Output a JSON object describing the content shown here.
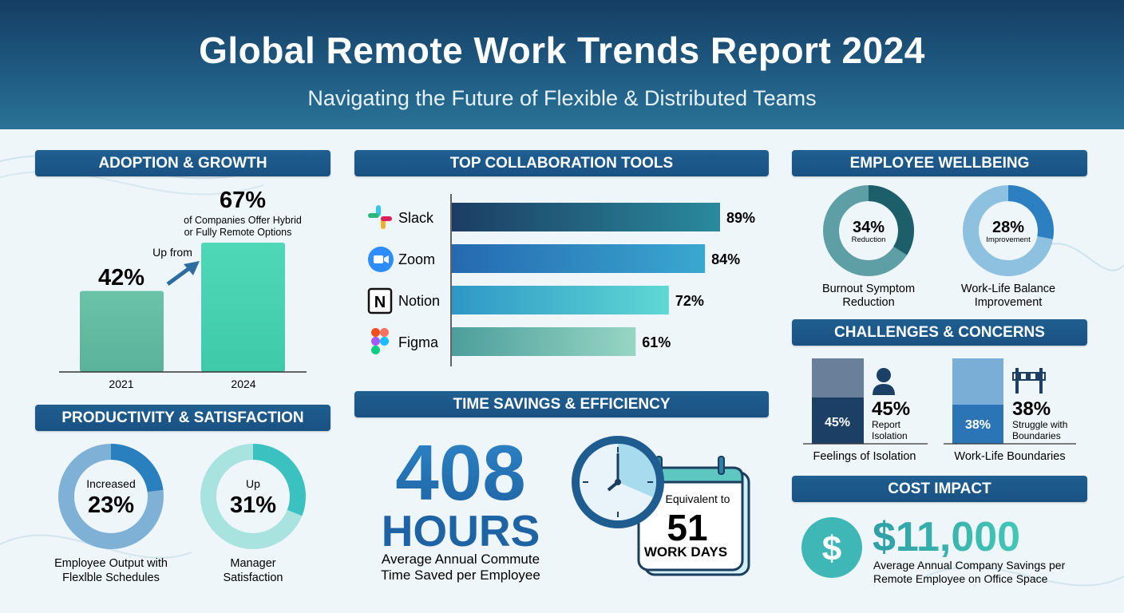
{
  "header": {
    "title": "Global Remote Work Trends Report 2024",
    "subtitle": "Navigating the Future of Flexible & Distributed Teams"
  },
  "sections": {
    "adoption": "ADOPTION & GROWTH",
    "tools": "TOP COLLABORATION TOOLS",
    "wellbeing": "EMPLOYEE WELLBEING",
    "productivity": "PRODUCTIVITY & SATISFACTION",
    "time": "TIME SAVINGS & EFFICIENCY",
    "challenges": "CHALLENGES & CONCERNS",
    "cost": "COST IMPACT"
  },
  "adoption": {
    "big_value": "67%",
    "caption_line1": "of Companies Offer Hybrid",
    "caption_line2": "or Fully Remote Options",
    "up_from": "Up from",
    "label_2021": "42%"
  },
  "productivity": {
    "output_prefix": "Increased",
    "output_value": "23%",
    "output_cap1": "Employee Output with",
    "output_cap2": "Flexlble Schedules",
    "manager_prefix": "Up",
    "manager_value": "31%",
    "manager_cap1": "Manager",
    "manager_cap2": "Satisfaction"
  },
  "time": {
    "big_number": "408",
    "unit": "HOURS",
    "caption1": "Average Annual Commute",
    "caption2": "Time Saved per Employee",
    "equivalent": "Equivalent to",
    "days": "51",
    "days_label": "WORK DAYS"
  },
  "wellbeing": {
    "burnout_value": "34%",
    "burnout_inner": "Reduction",
    "burnout_cap1": "Burnout Symptom",
    "burnout_cap2": "Reduction",
    "wlb_value": "28%",
    "wlb_inner": "Improvement",
    "wlb_cap1": "Work-Life Balance",
    "wlb_cap2": "Improvement"
  },
  "challenges": {
    "iso_bar_label": "45%",
    "iso_value": "45%",
    "iso_text1": "Report",
    "iso_text2": "Isolation",
    "iso_caption": "Feelings of Isolation",
    "bnd_bar_label": "38%",
    "bnd_value": "38%",
    "bnd_text1": "Struggle with",
    "bnd_text2": "Boundaries",
    "bnd_caption": "Work-Life Boundaries"
  },
  "cost": {
    "symbol": "$",
    "value": "$11,000",
    "caption1": "Average Annual Company Savings per",
    "caption2": "Remote Employee on Office Space"
  },
  "colors": {
    "navy": "#1a5183",
    "teal": "#42c4b0",
    "blue": "#2e7fc0"
  },
  "chart_data": [
    {
      "type": "bar",
      "title": "ADOPTION & GROWTH",
      "categories": [
        "2021",
        "2024"
      ],
      "values": [
        42,
        67
      ],
      "ylim": [
        0,
        75
      ]
    },
    {
      "type": "bar",
      "title": "TOP COLLABORATION TOOLS",
      "orientation": "horizontal",
      "categories": [
        "Slack",
        "Zoom",
        "Notion",
        "Figma"
      ],
      "values": [
        89,
        84,
        72,
        61
      ],
      "value_labels": [
        "89%",
        "84%",
        "72%",
        "61%"
      ],
      "xlim": [
        0,
        100
      ]
    },
    {
      "type": "pie",
      "title": "PRODUCTIVITY & SATISFACTION",
      "series": [
        {
          "name": "Employee Output with Flexlble Schedules",
          "value": 23
        },
        {
          "name": "Manager Satisfaction",
          "value": 31
        }
      ]
    },
    {
      "type": "pie",
      "title": "EMPLOYEE WELLBEING",
      "series": [
        {
          "name": "Burnout Symptom Reduction",
          "value": 34
        },
        {
          "name": "Work-Life Balance Improvement",
          "value": 28
        }
      ]
    },
    {
      "type": "bar",
      "title": "CHALLENGES & CONCERNS",
      "categories": [
        "Feelings of Isolation",
        "Work-Life Boundaries"
      ],
      "values": [
        45,
        38
      ]
    }
  ]
}
